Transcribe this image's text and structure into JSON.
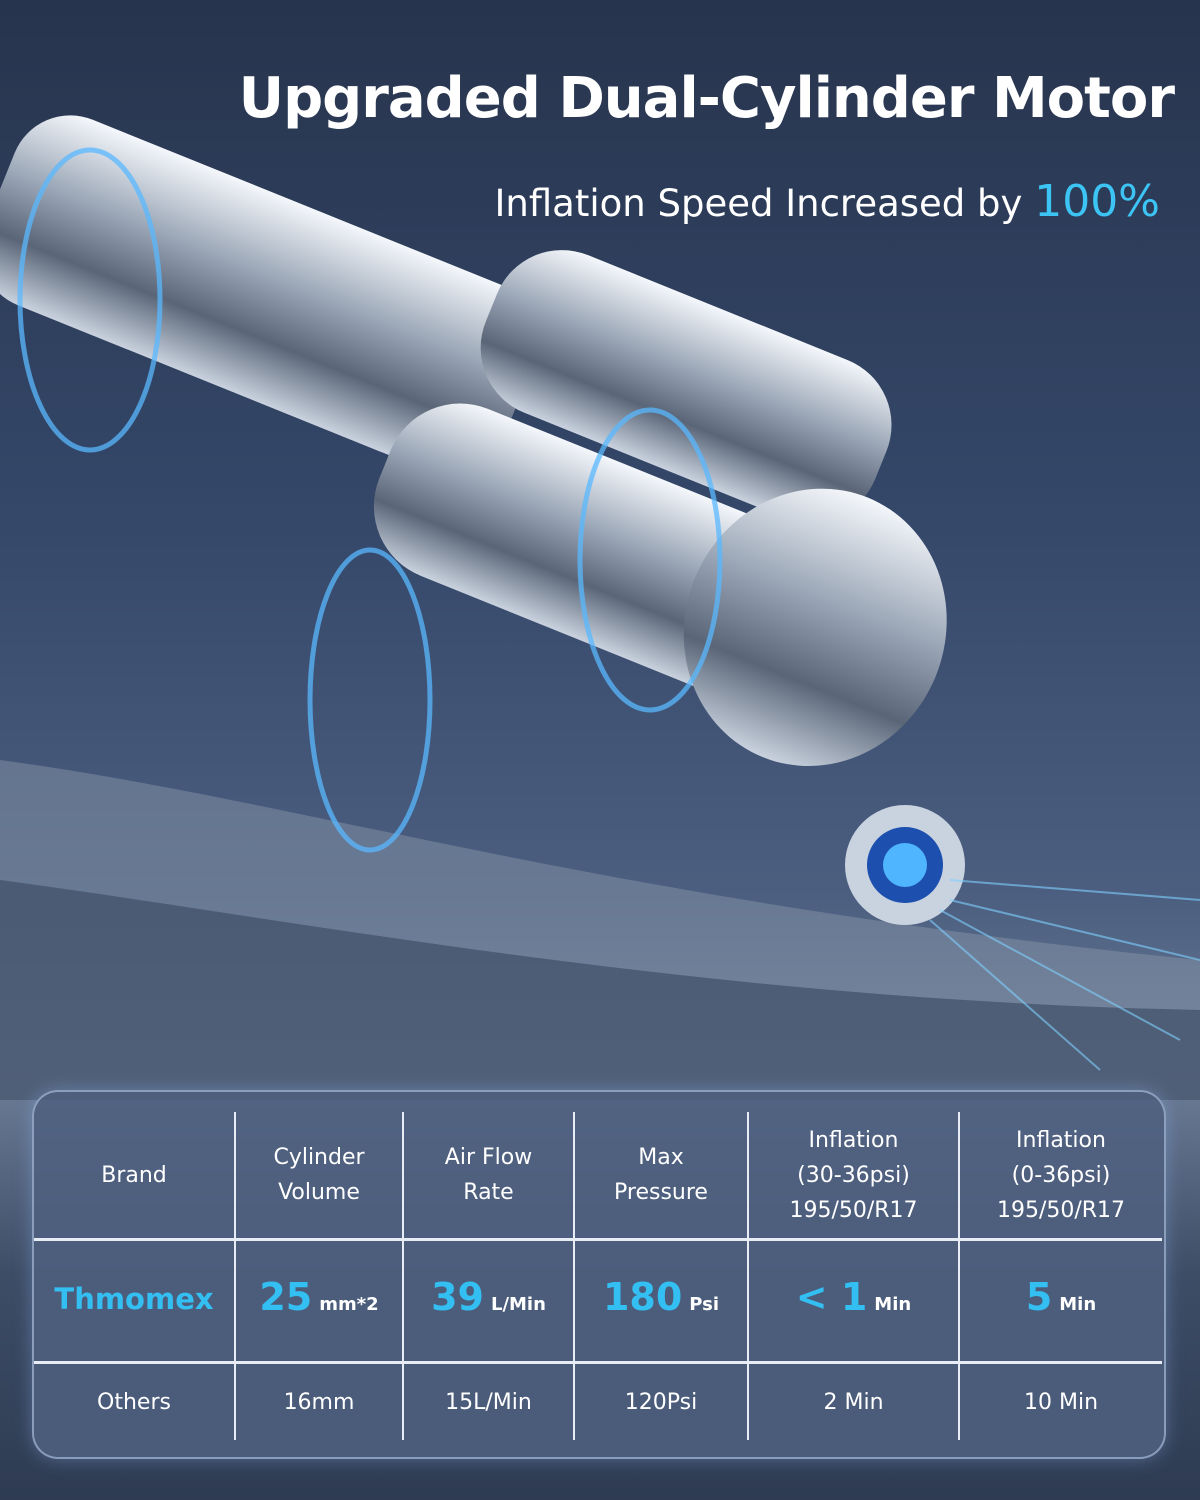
{
  "header": {
    "title": "Upgraded Dual-Cylinder Motor",
    "subtitle_prefix": "Inflation Speed Increased by",
    "subtitle_highlight": "100%"
  },
  "colors": {
    "accent": "#33bff2",
    "background": "#2e3b52"
  },
  "image": {
    "subject": "dual-cylinder-motor-illustration"
  },
  "table": {
    "headers": [
      [
        "Brand"
      ],
      [
        "Cylinder",
        "Volume"
      ],
      [
        "Air Flow",
        "Rate"
      ],
      [
        "Max",
        "Pressure"
      ],
      [
        "Inflation",
        "(30-36psi)",
        "195/50/R17"
      ],
      [
        "Inflation",
        "(0-36psi)",
        "195/50/R17"
      ]
    ],
    "thmomex": {
      "brand": "Thmomex",
      "cells": [
        {
          "value": "25",
          "unit": "mm*2"
        },
        {
          "value": "39",
          "unit": "L/Min"
        },
        {
          "value": "180",
          "unit": "Psi"
        },
        {
          "value": "< 1",
          "unit": "Min"
        },
        {
          "value": "5",
          "unit": "Min"
        }
      ]
    },
    "others": {
      "brand": "Others",
      "cells": [
        "16mm",
        "15L/Min",
        "120Psi",
        "2 Min",
        "10 Min"
      ]
    }
  }
}
